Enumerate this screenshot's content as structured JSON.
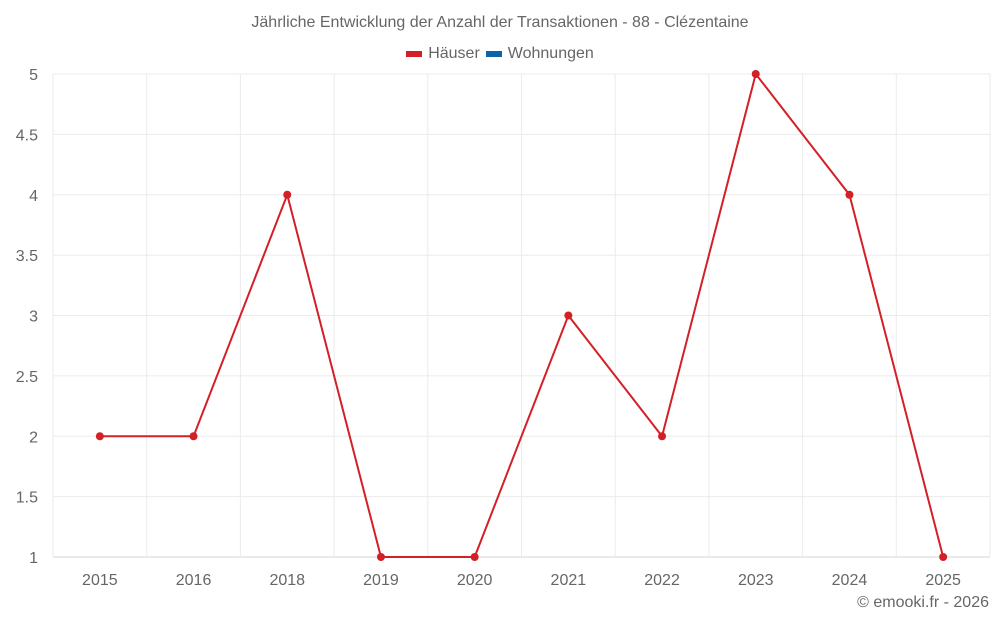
{
  "chart_data": {
    "type": "line",
    "title": "Jährliche Entwicklung der Anzahl der Transaktionen - 88 - Clézentaine",
    "categories": [
      "2015",
      "2016",
      "2018",
      "2019",
      "2020",
      "2021",
      "2022",
      "2023",
      "2024",
      "2025"
    ],
    "series": [
      {
        "name": "Häuser",
        "color": "#d32027",
        "values": [
          2,
          2,
          4,
          1,
          1,
          3,
          2,
          5,
          4,
          1
        ]
      },
      {
        "name": "Wohnungen",
        "color": "#0d63a5",
        "values": []
      }
    ],
    "xlabel": "",
    "ylabel": "",
    "ylim": [
      1,
      5
    ],
    "yticks": [
      "1",
      "1.5",
      "2",
      "2.5",
      "3",
      "3.5",
      "4",
      "4.5",
      "5"
    ],
    "grid": true,
    "legend_position": "top"
  },
  "credit": "© emooki.fr - 2026"
}
